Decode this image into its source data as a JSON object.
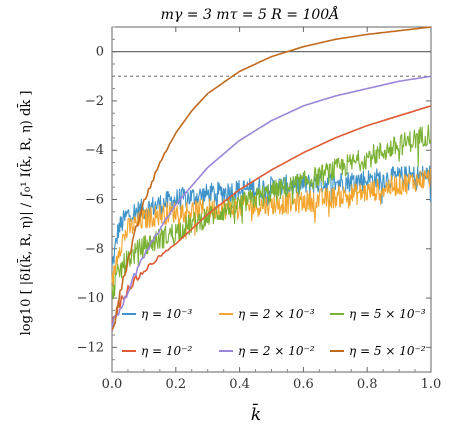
{
  "chart_data": {
    "type": "line",
    "title": "mγ = 3   mτ = 5   R = 100Å",
    "xlabel": "k̄",
    "ylabel": "log10 [ |δI(k̄, R, η)| / ∫₀¹ I(k̄, R, η) dk̄ ]",
    "xlim": [
      0,
      1
    ],
    "ylim": [
      -13,
      1
    ],
    "x_ticks": [
      "0.0",
      "0.2",
      "0.4",
      "0.6",
      "0.8",
      "1.0"
    ],
    "y_ticks": [
      "0",
      "-2",
      "-4",
      "-6",
      "-8",
      "-10",
      "-12"
    ],
    "reference_lines": [
      {
        "y": 0,
        "style": "solid",
        "color": "#6e6e6e"
      },
      {
        "y": -1,
        "style": "dashed",
        "color": "#888888"
      }
    ],
    "legend_position": "bottom",
    "series": [
      {
        "name": "η = 10⁻³",
        "color": "#3f93c9",
        "noisy": true,
        "x": [
          0.0,
          0.02,
          0.05,
          0.1,
          0.15,
          0.2,
          0.3,
          0.4,
          0.5,
          0.6,
          0.7,
          0.8,
          0.9,
          1.0
        ],
        "y": [
          -8.8,
          -7.2,
          -6.6,
          -6.4,
          -6.2,
          -6.0,
          -5.8,
          -5.6,
          -5.5,
          -5.4,
          -5.3,
          -5.2,
          -5.1,
          -5.0
        ]
      },
      {
        "name": "η = 2 × 10⁻³",
        "color": "#f3a52d",
        "noisy": true,
        "x": [
          0.0,
          0.02,
          0.05,
          0.1,
          0.15,
          0.2,
          0.3,
          0.4,
          0.5,
          0.6,
          0.7,
          0.8,
          0.9,
          1.0
        ],
        "y": [
          -9.5,
          -8.0,
          -7.2,
          -6.8,
          -6.6,
          -6.5,
          -6.4,
          -6.3,
          -6.2,
          -6.1,
          -5.9,
          -5.7,
          -5.4,
          -5.1
        ]
      },
      {
        "name": "η = 5 × 10⁻³",
        "color": "#7ab133",
        "noisy": true,
        "x": [
          0.0,
          0.02,
          0.05,
          0.1,
          0.15,
          0.2,
          0.25,
          0.3,
          0.4,
          0.5,
          0.6,
          0.7,
          0.8,
          0.9,
          1.0
        ],
        "y": [
          -9.8,
          -9.0,
          -8.4,
          -7.9,
          -7.6,
          -7.3,
          -7.0,
          -6.7,
          -6.2,
          -5.7,
          -5.3,
          -4.8,
          -4.3,
          -3.8,
          -3.3
        ]
      },
      {
        "name": "η = 10⁻²",
        "color": "#e05a36",
        "noisy": false,
        "x": [
          0.0,
          0.02,
          0.05,
          0.1,
          0.15,
          0.2,
          0.3,
          0.4,
          0.5,
          0.6,
          0.7,
          0.8,
          0.9,
          1.0
        ],
        "y": [
          -11.0,
          -10.3,
          -9.6,
          -8.9,
          -8.3,
          -7.8,
          -6.6,
          -5.6,
          -4.8,
          -4.1,
          -3.5,
          -3.0,
          -2.6,
          -2.2
        ]
      },
      {
        "name": "η = 2 × 10⁻²",
        "color": "#9a86d6",
        "noisy": false,
        "x": [
          0.0,
          0.02,
          0.05,
          0.1,
          0.15,
          0.2,
          0.3,
          0.4,
          0.5,
          0.6,
          0.7,
          0.8,
          0.9,
          1.0
        ],
        "y": [
          -11.2,
          -10.5,
          -9.7,
          -8.3,
          -7.2,
          -6.2,
          -4.7,
          -3.6,
          -2.8,
          -2.2,
          -1.8,
          -1.5,
          -1.2,
          -1.0
        ]
      },
      {
        "name": "η = 5 × 10⁻²",
        "color": "#c06a1e",
        "noisy": false,
        "x": [
          0.0,
          0.02,
          0.04,
          0.07,
          0.1,
          0.15,
          0.2,
          0.25,
          0.3,
          0.4,
          0.5,
          0.6,
          0.7,
          0.8,
          0.9,
          1.0
        ],
        "y": [
          -11.5,
          -10.2,
          -9.0,
          -7.4,
          -6.1,
          -4.5,
          -3.3,
          -2.4,
          -1.7,
          -0.8,
          -0.2,
          0.2,
          0.5,
          0.7,
          0.85,
          1.0
        ]
      }
    ]
  }
}
